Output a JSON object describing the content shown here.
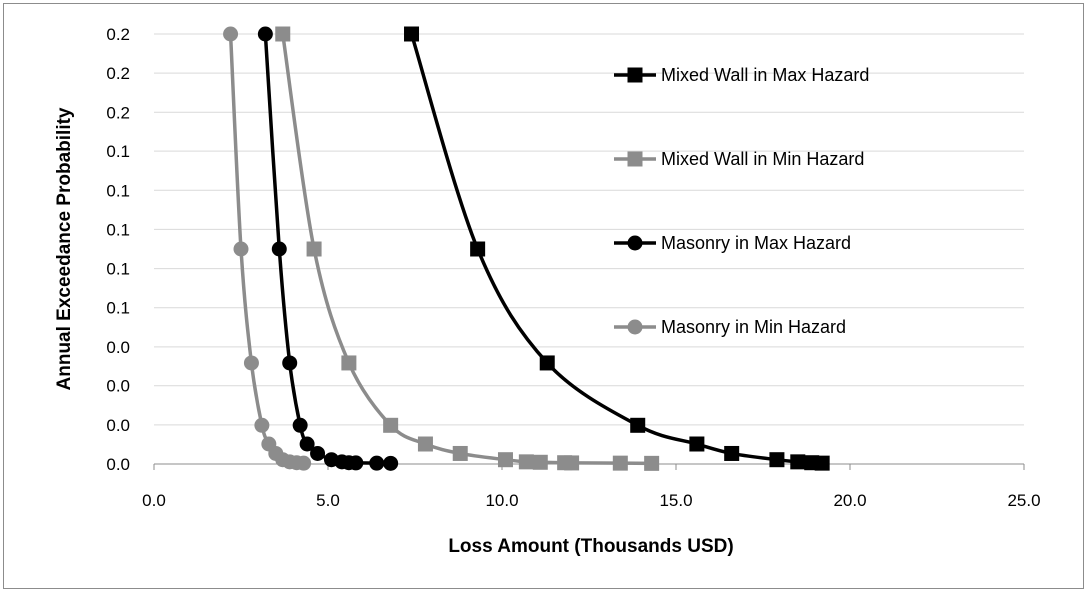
{
  "chart_data": {
    "type": "line",
    "title": "",
    "xlabel": "Loss Amount (Thousands USD)",
    "ylabel": "Annual Exceedance Probability",
    "xlim": [
      0,
      25
    ],
    "ylim": [
      0,
      0.2
    ],
    "x_ticks": [
      0,
      5,
      10,
      15,
      20,
      25
    ],
    "x_tick_labels": [
      "0.0",
      "5.0",
      "10.0",
      "15.0",
      "20.0",
      "25.0"
    ],
    "y_ticks": [
      0,
      0.0182,
      0.0364,
      0.0545,
      0.0727,
      0.0909,
      0.1091,
      0.1273,
      0.1455,
      0.1636,
      0.1818,
      0.2
    ],
    "y_tick_labels": [
      "0.0",
      "0.0",
      "0.0",
      "0.0",
      "0.1",
      "0.1",
      "0.1",
      "0.1",
      "0.1",
      "0.2",
      "0.2",
      "0.2"
    ],
    "grid": "horizontal",
    "legend_position": "right",
    "series": [
      {
        "name": "Mixed Wall in Max Hazard",
        "color": "#000000",
        "marker": "square",
        "points": [
          [
            7.4,
            0.2
          ],
          [
            9.3,
            0.1
          ],
          [
            11.3,
            0.047
          ],
          [
            13.9,
            0.018
          ],
          [
            15.6,
            0.0093
          ],
          [
            16.6,
            0.0049
          ],
          [
            17.9,
            0.002
          ],
          [
            18.5,
            0.001
          ],
          [
            18.9,
            0.0006
          ],
          [
            19.2,
            0.0004
          ]
        ]
      },
      {
        "name": "Mixed Wall in Min Hazard",
        "color": "#8c8c8c",
        "marker": "square",
        "points": [
          [
            3.7,
            0.2
          ],
          [
            4.6,
            0.1
          ],
          [
            5.6,
            0.047
          ],
          [
            6.8,
            0.018
          ],
          [
            7.8,
            0.0093
          ],
          [
            8.8,
            0.0049
          ],
          [
            10.1,
            0.002
          ],
          [
            10.7,
            0.001
          ],
          [
            11.1,
            0.0008
          ],
          [
            11.8,
            0.0006
          ],
          [
            12.0,
            0.0005
          ],
          [
            13.4,
            0.0004
          ],
          [
            14.3,
            0.0003
          ]
        ]
      },
      {
        "name": "Masonry in Max Hazard",
        "color": "#000000",
        "marker": "circle",
        "points": [
          [
            3.2,
            0.2
          ],
          [
            3.6,
            0.1
          ],
          [
            3.9,
            0.047
          ],
          [
            4.2,
            0.018
          ],
          [
            4.4,
            0.0093
          ],
          [
            4.7,
            0.0049
          ],
          [
            5.1,
            0.002
          ],
          [
            5.4,
            0.001
          ],
          [
            5.6,
            0.0006
          ],
          [
            5.8,
            0.0005
          ],
          [
            6.4,
            0.0004
          ],
          [
            6.8,
            0.0003
          ]
        ]
      },
      {
        "name": "Masonry in Min Hazard",
        "color": "#8c8c8c",
        "marker": "circle",
        "points": [
          [
            2.2,
            0.2
          ],
          [
            2.5,
            0.1
          ],
          [
            2.8,
            0.047
          ],
          [
            3.1,
            0.018
          ],
          [
            3.3,
            0.0093
          ],
          [
            3.5,
            0.0049
          ],
          [
            3.7,
            0.002
          ],
          [
            3.9,
            0.001
          ],
          [
            4.1,
            0.0006
          ],
          [
            4.3,
            0.0004
          ]
        ]
      }
    ]
  }
}
